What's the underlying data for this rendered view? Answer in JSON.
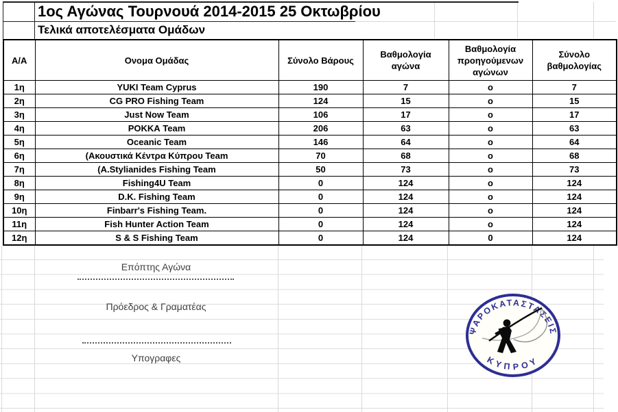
{
  "title": "1ος Αγώνας Τουρνουά 2014-2015 25 Οκτωβρίου",
  "subtitle": "Τελικά αποτελέσματα Ομάδων",
  "table": {
    "headers": [
      "Α/Α",
      "Ονομα Ομάδας",
      "Σύνολο Βάρους",
      "Βαθμολογία αγώνα",
      "Βαθμολογία προηγούμενων αγώνων",
      "Σύνολο βαθμολογίας"
    ],
    "rows": [
      {
        "rank": "1η",
        "team": "YUKI Team Cyprus",
        "weight": "190",
        "race_score": "7",
        "previous_score": "ο",
        "total_score": "7"
      },
      {
        "rank": "2η",
        "team": "CG PRO Fishing Team",
        "weight": "124",
        "race_score": "15",
        "previous_score": "ο",
        "total_score": "15"
      },
      {
        "rank": "3η",
        "team": "Just Now Team",
        "weight": "106",
        "race_score": "17",
        "previous_score": "ο",
        "total_score": "17"
      },
      {
        "rank": "4η",
        "team": "ΡΟΚΚΑ Team",
        "weight": "206",
        "race_score": "63",
        "previous_score": "ο",
        "total_score": "63"
      },
      {
        "rank": "5η",
        "team": "Oceanic Team",
        "weight": "146",
        "race_score": "64",
        "previous_score": "ο",
        "total_score": "64"
      },
      {
        "rank": "6η",
        "team": "(Ακουστικά Κέντρα Κύπρου Team",
        "weight": "70",
        "race_score": "68",
        "previous_score": "ο",
        "total_score": "68"
      },
      {
        "rank": "7η",
        "team": "(Α.Stylianides Fishing Team",
        "weight": "50",
        "race_score": "73",
        "previous_score": "ο",
        "total_score": "73"
      },
      {
        "rank": "8η",
        "team": "Fishing4U Team",
        "weight": "0",
        "race_score": "124",
        "previous_score": "ο",
        "total_score": "124"
      },
      {
        "rank": "9η",
        "team": "D.K. Fishing Team",
        "weight": "0",
        "race_score": "124",
        "previous_score": "ο",
        "total_score": "124"
      },
      {
        "rank": "10η",
        "team": "Finbarr's Fishing Team.",
        "weight": "0",
        "race_score": "124",
        "previous_score": "ο",
        "total_score": "124"
      },
      {
        "rank": "11η",
        "team": "Fish Hunter Action Team",
        "weight": "0",
        "race_score": "124",
        "previous_score": "ο",
        "total_score": "124"
      },
      {
        "rank": "12η",
        "team": "S & S Fishing Team",
        "weight": "0",
        "race_score": "124",
        "previous_score": "0",
        "total_score": "124"
      }
    ]
  },
  "footer": {
    "supervisor_label": "Επόπτης Αγώνα",
    "president_label": "Πρόεδρος & Γραματέας",
    "signatures_label": "Υπογραφες"
  },
  "logo": {
    "top_text": "ΨΑΡΟΚΑΤΑΣΤΑΣΕΙΣ",
    "bottom_text": "ΚΥΠΡΟΥ"
  },
  "colors": {
    "logo_navy": "#2e2e96",
    "gridline": "#d9d9d9",
    "table_border": "#000000",
    "footer_text": "#3f3f3f"
  }
}
